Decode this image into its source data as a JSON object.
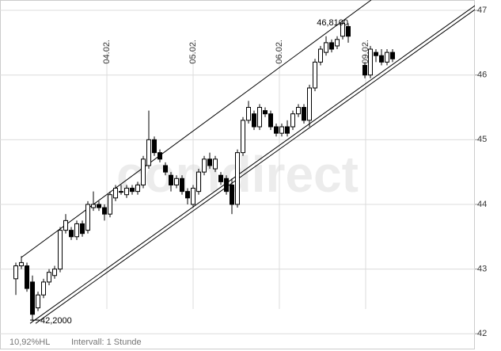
{
  "chart_data": {
    "type": "candlestick",
    "x": [
      0,
      1,
      2,
      3,
      4,
      5,
      6,
      7,
      8,
      9,
      10,
      11,
      12,
      13,
      14,
      15,
      16,
      17,
      18,
      19,
      20,
      21,
      22,
      23,
      24,
      25,
      26,
      27,
      28,
      29,
      30,
      31,
      32,
      33,
      34,
      35,
      36,
      37,
      38,
      39,
      40,
      41,
      42,
      43,
      44,
      45,
      46,
      47,
      48,
      49,
      50,
      51,
      52,
      53,
      54,
      55,
      56,
      57,
      58,
      59,
      60,
      63,
      64,
      65,
      66,
      67,
      68
    ],
    "open": [
      42.85,
      43.05,
      43.05,
      42.8,
      42.4,
      42.6,
      42.8,
      42.9,
      43.0,
      43.6,
      43.6,
      43.5,
      43.7,
      43.6,
      43.95,
      44.0,
      43.95,
      43.85,
      44.1,
      44.2,
      44.15,
      44.25,
      44.2,
      44.3,
      44.6,
      45.0,
      44.8,
      44.6,
      44.45,
      44.3,
      44.4,
      44.2,
      44.0,
      44.2,
      44.5,
      44.7,
      44.55,
      44.45,
      44.4,
      44.3,
      44.0,
      44.8,
      45.3,
      45.4,
      45.2,
      45.45,
      45.4,
      45.2,
      45.1,
      45.2,
      45.2,
      45.4,
      45.5,
      45.3,
      45.8,
      46.2,
      46.35,
      46.5,
      46.45,
      46.6,
      46.75,
      46.15,
      46.0,
      46.35,
      46.3,
      46.2,
      46.35
    ],
    "high": [
      43.1,
      43.2,
      43.1,
      42.9,
      42.65,
      42.85,
      43.0,
      43.05,
      43.65,
      43.85,
      43.65,
      43.75,
      43.75,
      44.05,
      44.2,
      44.05,
      44.0,
      44.2,
      44.3,
      44.3,
      44.3,
      44.3,
      44.35,
      44.75,
      45.45,
      45.05,
      44.85,
      44.65,
      44.5,
      44.45,
      44.45,
      44.25,
      44.3,
      44.55,
      44.75,
      44.8,
      44.75,
      44.5,
      44.45,
      44.4,
      44.85,
      45.35,
      45.6,
      45.45,
      45.55,
      45.5,
      45.45,
      45.25,
      45.25,
      45.3,
      45.45,
      45.55,
      45.55,
      45.85,
      46.25,
      46.45,
      46.6,
      46.55,
      46.6,
      46.81,
      46.8,
      46.2,
      46.45,
      46.4,
      46.4,
      46.4,
      46.4
    ],
    "low": [
      42.6,
      43.0,
      42.65,
      42.2,
      42.35,
      42.55,
      42.75,
      42.85,
      42.95,
      43.55,
      43.45,
      43.45,
      43.5,
      43.55,
      43.9,
      43.9,
      43.75,
      43.8,
      44.05,
      44.15,
      44.1,
      44.15,
      44.15,
      44.25,
      44.55,
      44.75,
      44.65,
      44.45,
      44.2,
      44.25,
      44.15,
      44.0,
      43.95,
      44.15,
      44.45,
      44.55,
      44.5,
      44.3,
      44.15,
      43.85,
      43.95,
      44.75,
      45.25,
      45.15,
      45.15,
      45.35,
      45.15,
      45.05,
      45.05,
      45.05,
      45.15,
      45.35,
      45.25,
      45.2,
      45.75,
      46.15,
      46.3,
      46.35,
      46.4,
      46.55,
      46.5,
      45.95,
      45.95,
      46.2,
      46.15,
      46.15,
      46.2
    ],
    "close": [
      43.05,
      43.1,
      42.7,
      42.3,
      42.6,
      42.8,
      42.95,
      43.0,
      43.6,
      43.75,
      43.5,
      43.7,
      43.55,
      44.0,
      44.0,
      43.95,
      43.85,
      44.15,
      44.25,
      44.2,
      44.25,
      44.2,
      44.3,
      44.7,
      45.0,
      44.8,
      44.7,
      44.5,
      44.3,
      44.4,
      44.2,
      44.1,
      44.25,
      44.5,
      44.7,
      44.6,
      44.7,
      44.35,
      44.2,
      44.0,
      44.8,
      45.3,
      45.5,
      45.2,
      45.5,
      45.4,
      45.2,
      45.1,
      45.2,
      45.1,
      45.4,
      45.5,
      45.3,
      45.8,
      46.2,
      46.4,
      46.5,
      46.4,
      46.55,
      46.8,
      46.6,
      46.0,
      46.4,
      46.3,
      46.2,
      46.35,
      46.25
    ],
    "xlim": [
      -2.86,
      82.86
    ],
    "xticks": [
      {
        "value": 16.43,
        "label": "04.02."
      },
      {
        "value": 32,
        "label": "05.02."
      },
      {
        "value": 47.57,
        "label": "06.02."
      },
      {
        "value": 63.14,
        "label": "09.02."
      }
    ],
    "ylim": [
      41.77,
      47.16
    ],
    "yticks": [
      42,
      43,
      44,
      45,
      46,
      47
    ],
    "grid": true,
    "trendlines": [
      {
        "x": [
          1,
          64.14
        ],
        "y": [
          43.18,
          47.16
        ]
      },
      {
        "x": [
          2.57,
          84.29
        ],
        "y": [
          42.16,
          47.16
        ]
      },
      {
        "x": [
          3.57,
          85.29
        ],
        "y": [
          42.16,
          47.16
        ]
      }
    ],
    "max_label": "46,8100",
    "min_label": "42,2000",
    "watermark": "comdirect",
    "footer_left": "10,92%HL",
    "footer_interval": "Intervall: 1 Stunde"
  }
}
